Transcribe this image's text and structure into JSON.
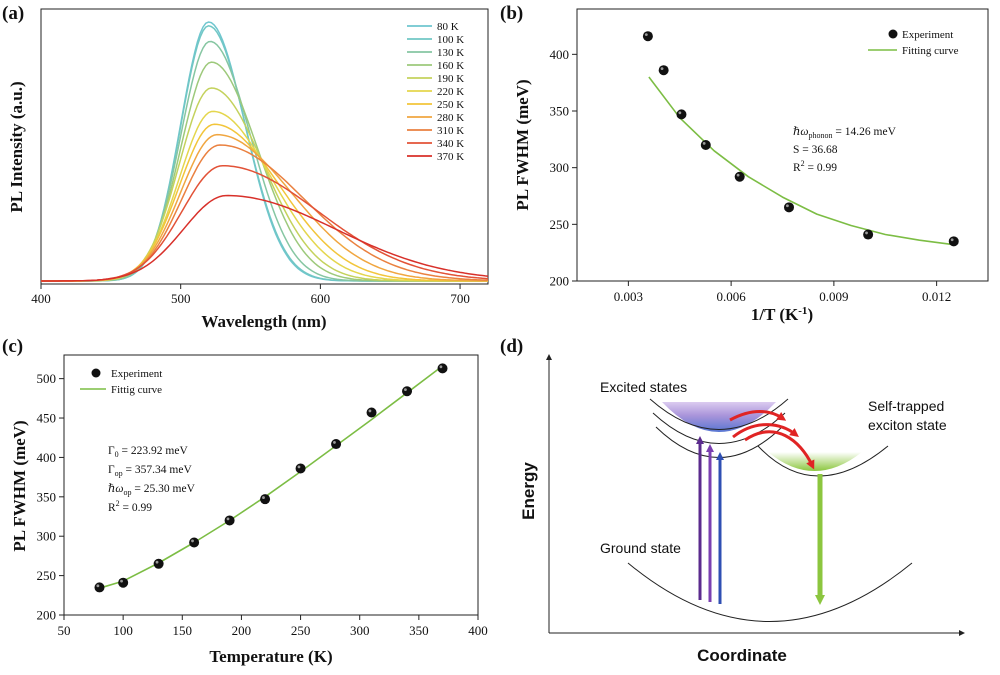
{
  "panel_labels": [
    "(a)",
    "(b)",
    "(c)",
    "(d)"
  ],
  "chart_data": [
    {
      "panel": "(a)",
      "type": "line",
      "xlabel": "Wavelength (nm)",
      "ylabel": "PL Intensity (a.u.)",
      "xlim": [
        400,
        720
      ],
      "xticks": [
        400,
        500,
        600,
        700
      ],
      "ylim": [
        0,
        1.05
      ],
      "y_ticks_shown": false,
      "legend": "top-right",
      "series": [
        {
          "name": "80 K",
          "color": "#6fc6cf",
          "peak_nm": 520,
          "amp": 1.0,
          "rise": 20,
          "fall": 26
        },
        {
          "name": "100 K",
          "color": "#71c7c5",
          "peak_nm": 520,
          "amp": 0.985,
          "rise": 20,
          "fall": 26.5
        },
        {
          "name": "130 K",
          "color": "#86c6a2",
          "peak_nm": 521,
          "amp": 0.925,
          "rise": 21,
          "fall": 29
        },
        {
          "name": "160 K",
          "color": "#9dc97b",
          "peak_nm": 522,
          "amp": 0.845,
          "rise": 22,
          "fall": 33
        },
        {
          "name": "190 K",
          "color": "#c4d25d",
          "peak_nm": 522,
          "amp": 0.745,
          "rise": 23,
          "fall": 37
        },
        {
          "name": "220 K",
          "color": "#e4d64d",
          "peak_nm": 523,
          "amp": 0.655,
          "rise": 24,
          "fall": 42
        },
        {
          "name": "250 K",
          "color": "#f2c53a",
          "peak_nm": 524,
          "amp": 0.605,
          "rise": 25,
          "fall": 47
        },
        {
          "name": "280 K",
          "color": "#f0a640",
          "peak_nm": 526,
          "amp": 0.565,
          "rise": 26,
          "fall": 53
        },
        {
          "name": "310 K",
          "color": "#ea8140",
          "peak_nm": 528,
          "amp": 0.525,
          "rise": 27,
          "fall": 60
        },
        {
          "name": "340 K",
          "color": "#e25237",
          "peak_nm": 530,
          "amp": 0.445,
          "rise": 29,
          "fall": 68
        },
        {
          "name": "370 K",
          "color": "#d8302a",
          "peak_nm": 533,
          "amp": 0.33,
          "rise": 31,
          "fall": 78
        }
      ]
    },
    {
      "panel": "(b)",
      "type": "scatter",
      "xlabel": "1/T (K⁻¹)",
      "ylabel": "PL FWHM (meV)",
      "xlim": [
        0.0015,
        0.0135
      ],
      "ylim": [
        200,
        440
      ],
      "xticks": [
        0.003,
        0.006,
        0.009,
        0.012
      ],
      "xtick_labels": [
        "0.003",
        "0.006",
        "0.009",
        "0.012"
      ],
      "yticks": [
        200,
        250,
        300,
        350,
        400
      ],
      "legend": "top-right",
      "series": [
        {
          "name": "Experiment",
          "kind": "points",
          "x": [
            0.00357,
            0.00403,
            0.00455,
            0.00526,
            0.00625,
            0.00769,
            0.01,
            0.0125
          ],
          "y": [
            416,
            386,
            347,
            320,
            292,
            265,
            241,
            235
          ]
        },
        {
          "name": "Fitting curve",
          "kind": "line",
          "color": "#7cbd44",
          "x": [
            0.0036,
            0.0045,
            0.0055,
            0.0065,
            0.0075,
            0.0085,
            0.0095,
            0.0105,
            0.0115,
            0.0125
          ],
          "y": [
            380,
            344,
            315,
            292,
            274,
            259,
            249,
            241,
            236,
            232
          ]
        }
      ],
      "annotation": {
        "hw_label": "ℏω",
        "hw_sub": "phonon",
        "hw_value": " = 14.26 meV",
        "s": "S = 36.68",
        "r2_label": "R",
        "r2_sup": "2",
        "r2_value": " = 0.99"
      }
    },
    {
      "panel": "(c)",
      "type": "scatter",
      "xlabel": "Temperature (K)",
      "ylabel": "PL FWHM (meV)",
      "xlim": [
        50,
        400
      ],
      "ylim": [
        200,
        530
      ],
      "xticks": [
        50,
        100,
        150,
        200,
        250,
        300,
        350,
        400
      ],
      "yticks": [
        200,
        250,
        300,
        350,
        400,
        450,
        500
      ],
      "legend": "top-left",
      "series": [
        {
          "name": "Experiment",
          "kind": "points",
          "x": [
            80,
            100,
            130,
            160,
            190,
            220,
            250,
            280,
            310,
            340,
            370
          ],
          "y": [
            235,
            241,
            265,
            292,
            320,
            347,
            386,
            417,
            457,
            484,
            513
          ]
        },
        {
          "name": "Fittig curve",
          "kind": "line",
          "color": "#7cbd44",
          "x": [
            80,
            100,
            130,
            160,
            190,
            220,
            250,
            280,
            310,
            340,
            370
          ],
          "y": [
            234,
            243,
            266,
            292,
            320,
            350,
            382,
            415,
            448,
            482,
            516
          ]
        }
      ],
      "annotation": {
        "g0_label": "Γ",
        "g0_sub": "0",
        "g0_value": " = 223.92 meV",
        "gop_label": "Γ",
        "gop_sub": "op",
        "gop_value": " =  357.34 meV",
        "hw_label": "ℏω",
        "hw_sub": "op",
        "hw_value": " = 25.30 meV",
        "r2_label": "R",
        "r2_sup": "2",
        "r2_value": " = 0.99"
      }
    }
  ],
  "diagram": {
    "panel": "(d)",
    "y_axis_label": "Energy",
    "x_axis_label": "Coordinate",
    "excited_label": "Excited states",
    "ste_label_line1": "Self-trapped",
    "ste_label_line2": "exciton state",
    "ground_label": "Ground state",
    "colors": {
      "excitation_purple": "#5b2b8e",
      "excitation_violet": "#7a3fb0",
      "excitation_blue": "#2f4fb3",
      "emission_green": "#8cc63f",
      "relaxation_red": "#e02424"
    }
  }
}
